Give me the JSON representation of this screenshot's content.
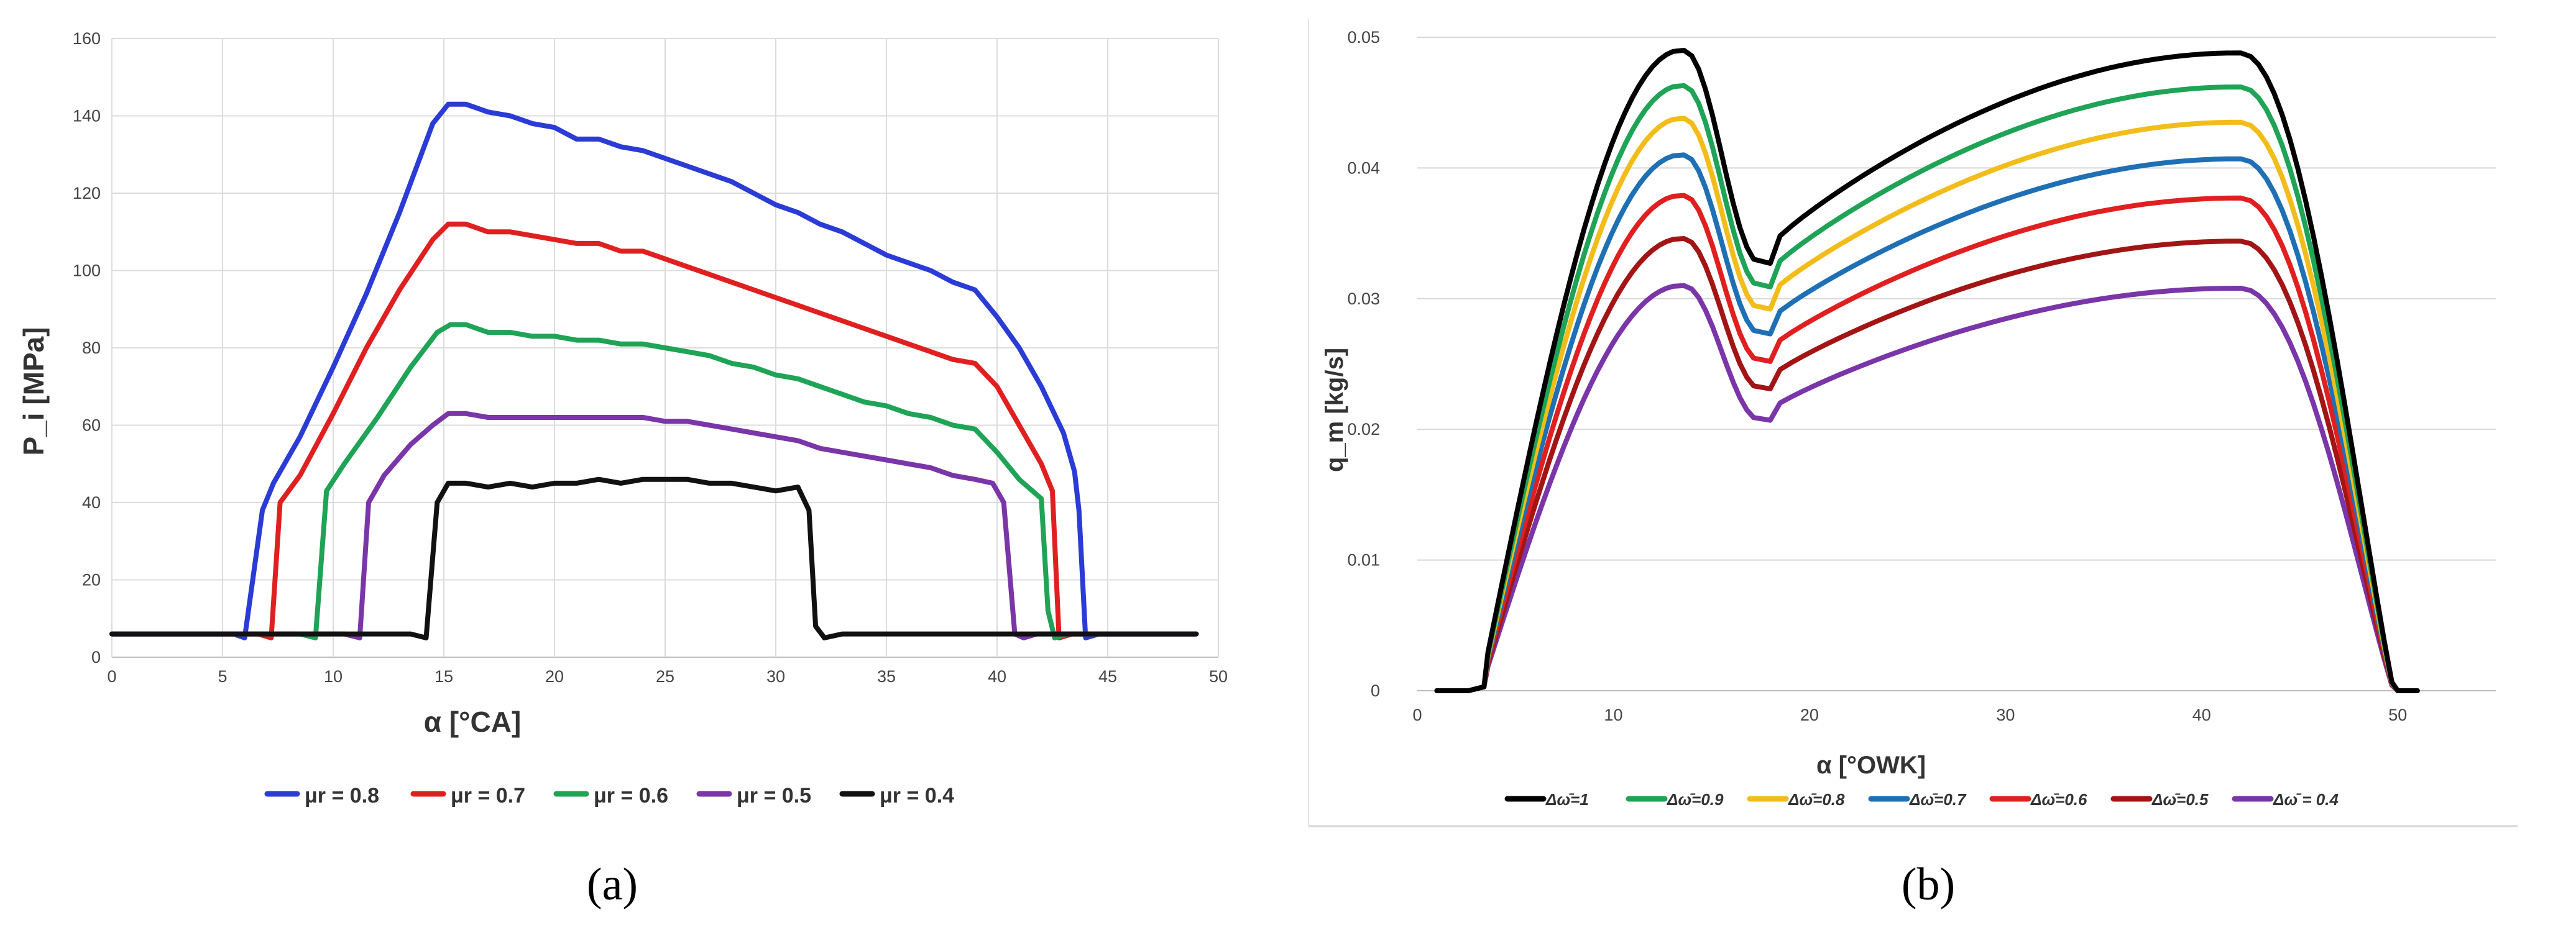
{
  "panels": {
    "a": "(a)",
    "b": "(b)"
  },
  "chart_data": [
    {
      "id": "a",
      "type": "line",
      "title": "",
      "xlabel": "α [°CA]",
      "ylabel": "P_i [MPa]",
      "xlim": [
        0,
        50
      ],
      "ylim": [
        0,
        160
      ],
      "xticks": [
        0,
        5,
        10,
        15,
        20,
        25,
        30,
        35,
        40,
        45,
        50
      ],
      "yticks": [
        0,
        20,
        40,
        60,
        80,
        100,
        120,
        140,
        160
      ],
      "grid": true,
      "legend_position": "bottom",
      "series": [
        {
          "name": "μr = 0.8",
          "color": "#2b3bd6",
          "points": [
            [
              0,
              6
            ],
            [
              5.5,
              6
            ],
            [
              6,
              5
            ],
            [
              6.8,
              38
            ],
            [
              7.3,
              45
            ],
            [
              8.5,
              57
            ],
            [
              10,
              75
            ],
            [
              11.5,
              94
            ],
            [
              13,
              115
            ],
            [
              14.5,
              138
            ],
            [
              15.2,
              143
            ],
            [
              16,
              143
            ],
            [
              17,
              141
            ],
            [
              18,
              140
            ],
            [
              19,
              138
            ],
            [
              20,
              137
            ],
            [
              21,
              134
            ],
            [
              22,
              134
            ],
            [
              23,
              132
            ],
            [
              24,
              131
            ],
            [
              25,
              129
            ],
            [
              26,
              127
            ],
            [
              27,
              125
            ],
            [
              28,
              123
            ],
            [
              29,
              120
            ],
            [
              30,
              117
            ],
            [
              31,
              115
            ],
            [
              32,
              112
            ],
            [
              33,
              110
            ],
            [
              34,
              107
            ],
            [
              35,
              104
            ],
            [
              36,
              102
            ],
            [
              37,
              100
            ],
            [
              38,
              97
            ],
            [
              38.5,
              96
            ],
            [
              39,
              95
            ],
            [
              40,
              88
            ],
            [
              41,
              80
            ],
            [
              42,
              70
            ],
            [
              43,
              58
            ],
            [
              43.5,
              48
            ],
            [
              43.7,
              38
            ],
            [
              44,
              5
            ],
            [
              44.6,
              6
            ],
            [
              49,
              6
            ]
          ]
        },
        {
          "name": "μr = 0.7",
          "color": "#e02020",
          "points": [
            [
              0,
              6
            ],
            [
              6.6,
              6
            ],
            [
              7.2,
              5
            ],
            [
              7.6,
              40
            ],
            [
              8.5,
              47
            ],
            [
              10,
              63
            ],
            [
              11.5,
              80
            ],
            [
              13,
              95
            ],
            [
              14.5,
              108
            ],
            [
              15.2,
              112
            ],
            [
              16,
              112
            ],
            [
              17,
              110
            ],
            [
              18,
              110
            ],
            [
              19,
              109
            ],
            [
              20,
              108
            ],
            [
              21,
              107
            ],
            [
              22,
              107
            ],
            [
              23,
              105
            ],
            [
              24,
              105
            ],
            [
              25,
              103
            ],
            [
              26,
              101
            ],
            [
              27,
              99
            ],
            [
              28,
              97
            ],
            [
              29,
              95
            ],
            [
              30,
              93
            ],
            [
              31,
              91
            ],
            [
              32,
              89
            ],
            [
              33,
              87
            ],
            [
              34,
              85
            ],
            [
              35,
              83
            ],
            [
              36,
              81
            ],
            [
              37,
              79
            ],
            [
              38,
              77
            ],
            [
              39,
              76
            ],
            [
              40,
              70
            ],
            [
              41,
              60
            ],
            [
              42,
              50
            ],
            [
              42.5,
              43
            ],
            [
              42.8,
              5
            ],
            [
              43.4,
              6
            ],
            [
              49,
              6
            ]
          ]
        },
        {
          "name": "μr = 0.6",
          "color": "#1fa356",
          "points": [
            [
              0,
              6
            ],
            [
              8.5,
              6
            ],
            [
              9.2,
              5
            ],
            [
              9.7,
              43
            ],
            [
              10.5,
              50
            ],
            [
              12,
              62
            ],
            [
              13.5,
              75
            ],
            [
              14.7,
              84
            ],
            [
              15.3,
              86
            ],
            [
              16,
              86
            ],
            [
              17,
              84
            ],
            [
              18,
              84
            ],
            [
              19,
              83
            ],
            [
              20,
              83
            ],
            [
              21,
              82
            ],
            [
              22,
              82
            ],
            [
              23,
              81
            ],
            [
              24,
              81
            ],
            [
              25,
              80
            ],
            [
              26,
              79
            ],
            [
              27,
              78
            ],
            [
              28,
              76
            ],
            [
              29,
              75
            ],
            [
              30,
              73
            ],
            [
              31,
              72
            ],
            [
              32,
              70
            ],
            [
              33,
              68
            ],
            [
              34,
              66
            ],
            [
              35,
              65
            ],
            [
              36,
              63
            ],
            [
              37,
              62
            ],
            [
              38,
              60
            ],
            [
              39,
              59
            ],
            [
              40,
              53
            ],
            [
              41,
              46
            ],
            [
              42,
              41
            ],
            [
              42.3,
              12
            ],
            [
              42.6,
              5
            ],
            [
              43.2,
              6
            ],
            [
              49,
              6
            ]
          ]
        },
        {
          "name": "μr = 0.5",
          "color": "#7a35a8",
          "points": [
            [
              0,
              6
            ],
            [
              10.5,
              6
            ],
            [
              11.2,
              5
            ],
            [
              11.6,
              40
            ],
            [
              12.3,
              47
            ],
            [
              13.5,
              55
            ],
            [
              14.5,
              60
            ],
            [
              15.2,
              63
            ],
            [
              16,
              63
            ],
            [
              17,
              62
            ],
            [
              18,
              62
            ],
            [
              19,
              62
            ],
            [
              20,
              62
            ],
            [
              21,
              62
            ],
            [
              22,
              62
            ],
            [
              23,
              62
            ],
            [
              24,
              62
            ],
            [
              25,
              61
            ],
            [
              26,
              61
            ],
            [
              27,
              60
            ],
            [
              28,
              59
            ],
            [
              29,
              58
            ],
            [
              30,
              57
            ],
            [
              31,
              56
            ],
            [
              32,
              54
            ],
            [
              33,
              53
            ],
            [
              34,
              52
            ],
            [
              35,
              51
            ],
            [
              36,
              50
            ],
            [
              37,
              49
            ],
            [
              38,
              47
            ],
            [
              39,
              46
            ],
            [
              39.8,
              45
            ],
            [
              40.3,
              40
            ],
            [
              40.8,
              6
            ],
            [
              41.2,
              5
            ],
            [
              41.8,
              6
            ],
            [
              49,
              6
            ]
          ]
        },
        {
          "name": "μr = 0.4",
          "color": "#111111",
          "points": [
            [
              0,
              6
            ],
            [
              13.5,
              6
            ],
            [
              14.2,
              5
            ],
            [
              14.7,
              40
            ],
            [
              15.2,
              45
            ],
            [
              16,
              45
            ],
            [
              17,
              44
            ],
            [
              18,
              45
            ],
            [
              19,
              44
            ],
            [
              20,
              45
            ],
            [
              21,
              45
            ],
            [
              22,
              46
            ],
            [
              23,
              45
            ],
            [
              24,
              46
            ],
            [
              25,
              46
            ],
            [
              26,
              46
            ],
            [
              27,
              45
            ],
            [
              28,
              45
            ],
            [
              29,
              44
            ],
            [
              30,
              43
            ],
            [
              31,
              44
            ],
            [
              31.5,
              38
            ],
            [
              31.8,
              8
            ],
            [
              32.2,
              5
            ],
            [
              33,
              6
            ],
            [
              49,
              6
            ]
          ]
        }
      ]
    },
    {
      "id": "b",
      "type": "line",
      "title": "",
      "xlabel": "α [°OWK]",
      "ylabel": "q_m [kg/s]",
      "xlim": [
        0,
        55
      ],
      "ylim": [
        0,
        0.05
      ],
      "xticks": [
        0,
        10,
        20,
        30,
        40,
        50
      ],
      "yticks": [
        "0",
        "0.01",
        "0.02",
        "0.03",
        "0.04",
        "0.05"
      ],
      "ytick_values": [
        0,
        0.01,
        0.02,
        0.03,
        0.04,
        0.05
      ],
      "grid": true,
      "legend_position": "bottom",
      "series": [
        {
          "name": "Δω̄=1",
          "color": "#000000",
          "peak1": 0.049,
          "trough": 0.0327,
          "peak2": 0.0488
        },
        {
          "name": "Δω̄=0.9",
          "color": "#1fa356",
          "peak1": 0.0463,
          "trough": 0.0309,
          "peak2": 0.0462
        },
        {
          "name": "Δω̄=0.8",
          "color": "#f2bd1a",
          "peak1": 0.0438,
          "trough": 0.0292,
          "peak2": 0.0435
        },
        {
          "name": "Δω̄=0.7",
          "color": "#1f6fb5",
          "peak1": 0.041,
          "trough": 0.0273,
          "peak2": 0.0407
        },
        {
          "name": "Δω̄=0.6",
          "color": "#e02020",
          "peak1": 0.0379,
          "trough": 0.0252,
          "peak2": 0.0377
        },
        {
          "name": "Δω̄=0.5",
          "color": "#a31515",
          "peak1": 0.0346,
          "trough": 0.0231,
          "peak2": 0.0344
        },
        {
          "name": "Δω̄ = 0.4",
          "color": "#7a35a8",
          "peak1": 0.031,
          "trough": 0.0207,
          "peak2": 0.0308
        }
      ]
    }
  ]
}
